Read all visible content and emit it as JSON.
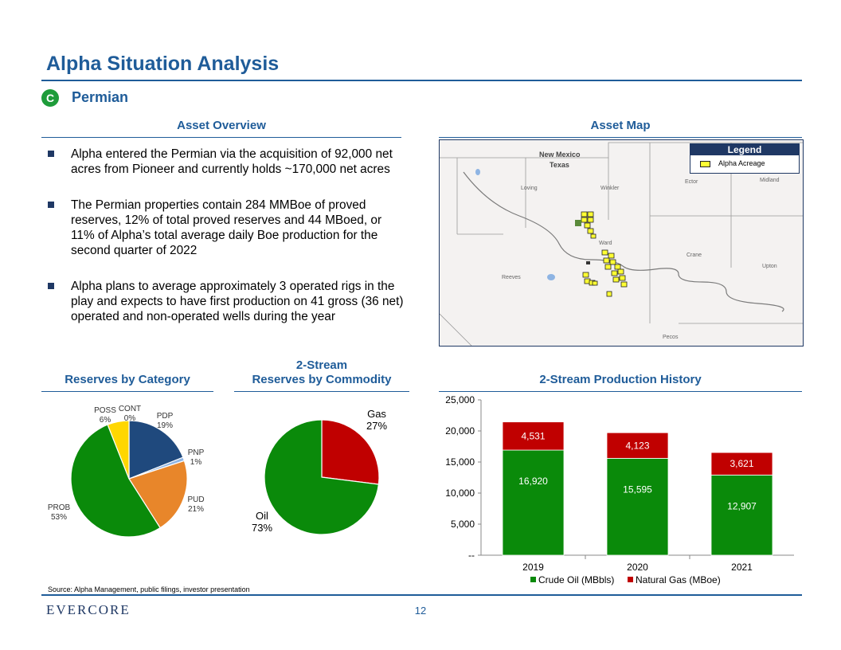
{
  "header": {
    "title": "Alpha Situation Analysis",
    "badge": "C",
    "subtitle": "Permian"
  },
  "asset_overview": {
    "heading": "Asset Overview",
    "bullets": [
      "Alpha entered the Permian via the acquisition of 92,000 net acres from Pioneer and currently holds ~170,000 net acres",
      "The Permian properties contain 284 MMBoe of proved reserves, 12% of total proved reserves and 44 MBoed, or 11% of Alpha’s total average daily Boe production for the second quarter of 2022",
      "Alpha plans to average approximately 3 operated rigs in the play and expects to have first production on 41 gross (36 net) operated and non-operated wells during the year"
    ]
  },
  "asset_map": {
    "heading": "Asset Map",
    "legend_title": "Legend",
    "legend_item": "Alpha Acreage",
    "labels": {
      "new_mexico": "New Mexico",
      "texas": "Texas",
      "loving": "Loving",
      "winkler": "Winkler",
      "ector": "Ector",
      "midland": "Midland",
      "ward": "Ward",
      "crane": "Crane",
      "upton": "Upton",
      "reeves": "Reeves",
      "pecos": "Pecos"
    },
    "colors": {
      "acreage": "#ffff33",
      "background": "#f4f2f1"
    }
  },
  "reserves_by_category": {
    "heading": "Reserves by Category"
  },
  "reserves_by_commodity": {
    "heading_line1": "2-Stream",
    "heading_line2": "Reserves by Commodity"
  },
  "production_history": {
    "heading": "2-Stream Production History"
  },
  "chart_data": [
    {
      "type": "pie",
      "title": "Reserves by Category",
      "slices": [
        {
          "name": "PDP",
          "label": "19%",
          "value": 19,
          "color": "#1f497d"
        },
        {
          "name": "PNP",
          "label": "1%",
          "value": 1,
          "color": "#8eb4e3"
        },
        {
          "name": "PUD",
          "label": "21%",
          "value": 21,
          "color": "#e8862a"
        },
        {
          "name": "PROB",
          "label": "53%",
          "value": 53,
          "color": "#0a8a0a"
        },
        {
          "name": "POSS",
          "label": "6%",
          "value": 6,
          "color": "#ffd700"
        },
        {
          "name": "CONT",
          "label": "0%",
          "value": 0,
          "color": "#7f7f7f"
        }
      ]
    },
    {
      "type": "pie",
      "title": "2-Stream Reserves by Commodity",
      "slices": [
        {
          "name": "Gas",
          "label": "27%",
          "value": 27,
          "color": "#c00000"
        },
        {
          "name": "Oil",
          "label": "73%",
          "value": 73,
          "color": "#0a8a0a"
        }
      ]
    },
    {
      "type": "bar",
      "stacked": true,
      "title": "2-Stream Production History",
      "categories": [
        "2019",
        "2020",
        "2021"
      ],
      "series": [
        {
          "name": "Crude Oil (MBbls)",
          "values": [
            16920,
            15595,
            12907
          ],
          "labels": [
            "16,920",
            "15,595",
            "12,907"
          ],
          "color": "#0a8a0a"
        },
        {
          "name": "Natural Gas (MBoe)",
          "values": [
            4531,
            4123,
            3621
          ],
          "labels": [
            "4,531",
            "4,123",
            "3,621"
          ],
          "color": "#c00000"
        }
      ],
      "ylim": [
        0,
        25000
      ],
      "yticks": [
        0,
        5000,
        10000,
        15000,
        20000,
        25000
      ],
      "ytick_labels": [
        "--",
        "5,000",
        "10,000",
        "15,000",
        "20,000",
        "25,000"
      ]
    }
  ],
  "footer": {
    "source": "Source: Alpha Management, public filings, investor presentation",
    "logo": "EVERCORE",
    "page_number": "12"
  }
}
